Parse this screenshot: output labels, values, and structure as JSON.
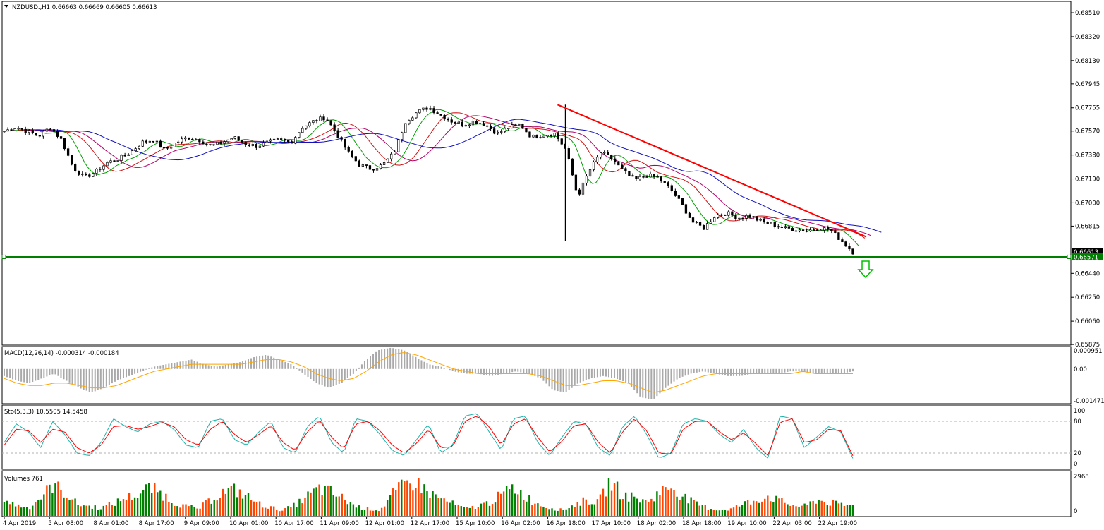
{
  "symbol_header": "NZDUSD.,H1  0.66663 0.66669 0.66605 0.66613",
  "colors": {
    "frame": "#000000",
    "candle": "#000000",
    "ma_green": "#00a000",
    "ma_red": "#d01010",
    "ma_magenta": "#b0006a",
    "ma_blue": "#1010c0",
    "trendline": "#ff0000",
    "support_line": "#008000",
    "arrow": "#00c000",
    "macd_hist": "#a9a9a9",
    "macd_signal": "#ffa500",
    "stoch_main": "#20b2aa",
    "stoch_signal": "#ff0000",
    "vol_up": "#008000",
    "vol_down": "#ff4500",
    "price_tag_bg": "#000000",
    "support_tag_bg": "#008000"
  },
  "chart_data": [
    {
      "type": "candlestick",
      "title": "NZDUSD.,H1  0.66663 0.66669 0.66605 0.66613",
      "ylim": [
        0.6587,
        0.686
      ],
      "y_ticks": [
        "0.68510",
        "0.68320",
        "0.68130",
        "0.67945",
        "0.67755",
        "0.67570",
        "0.67380",
        "0.67190",
        "0.67000",
        "0.66815",
        "0.66440",
        "0.66250",
        "0.66060",
        "0.65875"
      ],
      "price_tags": [
        "0.66613",
        "0.66571"
      ],
      "support_level": 0.66571,
      "trendline": {
        "from": [
          "16 Apr 18:00",
          0.6778
        ],
        "to": [
          "23 Apr 02:00",
          0.6673
        ]
      },
      "x_labels": [
        "4 Apr 2019",
        "5 Apr 08:00",
        "8 Apr 01:00",
        "8 Apr 17:00",
        "9 Apr 09:00",
        "10 Apr 01:00",
        "10 Apr 17:00",
        "11 Apr 09:00",
        "12 Apr 01:00",
        "12 Apr 17:00",
        "15 Apr 10:00",
        "16 Apr 02:00",
        "16 Apr 18:00",
        "17 Apr 10:00",
        "18 Apr 02:00",
        "18 Apr 18:00",
        "19 Apr 10:00",
        "22 Apr 03:00",
        "22 Apr 19:00"
      ],
      "close_path": [
        0.6757,
        0.676,
        0.6757,
        0.6753,
        0.676,
        0.675,
        0.6728,
        0.672,
        0.6725,
        0.6732,
        0.6735,
        0.674,
        0.6748,
        0.675,
        0.6742,
        0.6748,
        0.6752,
        0.675,
        0.6745,
        0.6748,
        0.6752,
        0.6747,
        0.6745,
        0.6748,
        0.675,
        0.6748,
        0.676,
        0.6765,
        0.6768,
        0.6755,
        0.674,
        0.673,
        0.6727,
        0.673,
        0.674,
        0.6765,
        0.6772,
        0.6776,
        0.677,
        0.6765,
        0.6762,
        0.6765,
        0.6762,
        0.6755,
        0.676,
        0.6762,
        0.6752,
        0.6754,
        0.6755,
        0.6742,
        0.6705,
        0.6725,
        0.674,
        0.6735,
        0.6725,
        0.6718,
        0.6722,
        0.672,
        0.6712,
        0.67,
        0.6685,
        0.668,
        0.669,
        0.6692,
        0.6688,
        0.669,
        0.6685,
        0.6683,
        0.668,
        0.6679,
        0.6678,
        0.668,
        0.6679,
        0.667,
        0.6661
      ],
      "low_spike": {
        "x": "16 Apr 18:00",
        "low": 0.667,
        "high": 0.6778
      },
      "moving_averages": [
        "green",
        "red",
        "magenta",
        "blue"
      ]
    },
    {
      "type": "histogram+line",
      "title": "MACD(12,26,14) -0.000314 -0.000184",
      "y_ticks": [
        "0.000951",
        "0.00",
        "-0.001471"
      ],
      "ylim": [
        -0.001471,
        0.000951
      ],
      "histogram": [
        -0.0003,
        -0.0005,
        -0.0006,
        -0.0004,
        -0.0002,
        -0.0005,
        -0.0008,
        -0.001,
        -0.0008,
        -0.0005,
        -0.0003,
        -0.0001,
        0.0001,
        0.0002,
        0.0003,
        0.0004,
        0.0002,
        0.0001,
        0.0002,
        0.0003,
        0.0005,
        0.0006,
        0.0004,
        0.0002,
        -0.0002,
        -0.0006,
        -0.0008,
        -0.0006,
        -0.0002,
        0.0004,
        0.0008,
        0.0009,
        0.0008,
        0.0005,
        0.0002,
        0.0001,
        -0.0001,
        -0.0002,
        -0.0002,
        -0.0003,
        -0.0002,
        -0.0001,
        -0.0002,
        -0.0004,
        -0.0009,
        -0.001,
        -0.0006,
        -0.0004,
        -0.0003,
        -0.0004,
        -0.0006,
        -0.0012,
        -0.0013,
        -0.0008,
        -0.0004,
        -0.0002,
        -0.0001,
        -0.0002,
        -0.0003,
        -0.0003,
        -0.0002,
        -0.0002,
        -0.0002,
        -0.0001,
        -0.0001,
        -0.0002,
        -0.0002,
        -0.0002,
        -0.0001
      ],
      "signal": [
        -0.0004,
        -0.0006,
        -0.0007,
        -0.0007,
        -0.0006,
        -0.0006,
        -0.0007,
        -0.0008,
        -0.0008,
        -0.0007,
        -0.0005,
        -0.0003,
        -0.0001,
        0.0,
        0.0001,
        0.0002,
        0.0002,
        0.0002,
        0.0002,
        0.0002,
        0.0003,
        0.0004,
        0.0004,
        0.0003,
        0.0001,
        -0.0002,
        -0.0004,
        -0.0005,
        -0.0004,
        -0.0001,
        0.0003,
        0.0006,
        0.0007,
        0.0006,
        0.0004,
        0.0002,
        0.0,
        -0.0001,
        -0.0002,
        -0.0002,
        -0.0002,
        -0.0002,
        -0.0002,
        -0.0003,
        -0.0005,
        -0.0007,
        -0.0007,
        -0.0006,
        -0.0005,
        -0.0005,
        -0.0006,
        -0.0008,
        -0.001,
        -0.0009,
        -0.0007,
        -0.0005,
        -0.0003,
        -0.0002,
        -0.0002,
        -0.0002,
        -0.0002,
        -0.0002,
        -0.0002,
        -0.0002,
        -0.0001,
        -0.0002,
        -0.0002,
        -0.0002,
        -0.0002
      ]
    },
    {
      "type": "line",
      "title": "Sto(5,3,3) 10.5505 14.5458",
      "y_ticks": [
        "100",
        "80",
        "20",
        "0"
      ],
      "ylim": [
        0,
        100
      ],
      "levels": [
        80,
        20
      ],
      "main": [
        40,
        75,
        60,
        30,
        80,
        55,
        20,
        15,
        40,
        85,
        70,
        60,
        75,
        80,
        65,
        35,
        30,
        80,
        85,
        45,
        35,
        60,
        80,
        30,
        20,
        70,
        90,
        40,
        20,
        85,
        80,
        55,
        25,
        15,
        45,
        75,
        20,
        35,
        90,
        95,
        60,
        25,
        85,
        90,
        40,
        15,
        50,
        80,
        75,
        30,
        15,
        70,
        90,
        55,
        10,
        20,
        75,
        85,
        80,
        55,
        40,
        65,
        30,
        10,
        90,
        85,
        30,
        50,
        70,
        60,
        10
      ],
      "signal": [
        35,
        65,
        62,
        40,
        65,
        60,
        30,
        20,
        35,
        70,
        72,
        65,
        70,
        78,
        70,
        45,
        35,
        65,
        80,
        55,
        40,
        55,
        72,
        40,
        25,
        60,
        82,
        50,
        28,
        75,
        80,
        62,
        35,
        20,
        38,
        65,
        30,
        32,
        80,
        90,
        70,
        35,
        75,
        85,
        50,
        22,
        42,
        72,
        75,
        40,
        20,
        60,
        85,
        62,
        20,
        18,
        65,
        80,
        80,
        60,
        45,
        58,
        38,
        15,
        78,
        85,
        40,
        45,
        65,
        62,
        15
      ]
    },
    {
      "type": "bar",
      "title": "Volumes 761",
      "y_ticks": [
        "2968",
        "0"
      ],
      "ylim": [
        0,
        2968
      ],
      "values": [
        1200,
        800,
        600,
        1400,
        2400,
        1800,
        900,
        700,
        600,
        900,
        1400,
        1600,
        2200,
        1700,
        1000,
        700,
        500,
        1200,
        1800,
        2000,
        1500,
        900,
        600,
        400,
        800,
        1500,
        2100,
        1800,
        1300,
        700,
        500,
        400,
        1600,
        2400,
        2700,
        1800,
        1300,
        900,
        500,
        700,
        1000,
        1600,
        2200,
        1500,
        900,
        600,
        400,
        800,
        1200,
        1000,
        2700,
        1600,
        1400,
        1000,
        1800,
        2300,
        1500,
        900,
        600,
        400,
        500,
        900,
        1200,
        1500,
        1100,
        800,
        700,
        1200,
        1000,
        800,
        761
      ],
      "up_flags": [
        1,
        0,
        1,
        1,
        1,
        0,
        1,
        1,
        0,
        1,
        0,
        1,
        1,
        0,
        1,
        1,
        0,
        1,
        0,
        1,
        1,
        0,
        1,
        0,
        1,
        1,
        0,
        1,
        1,
        0,
        1,
        0,
        1,
        0,
        1,
        1,
        0,
        1,
        1,
        0,
        1,
        0,
        1,
        1,
        0,
        1,
        0,
        1,
        1,
        0,
        0,
        1,
        0,
        1,
        1,
        0,
        1,
        0,
        1,
        1,
        0,
        1,
        0,
        0,
        1,
        0,
        1,
        0,
        1,
        0,
        0
      ]
    }
  ]
}
